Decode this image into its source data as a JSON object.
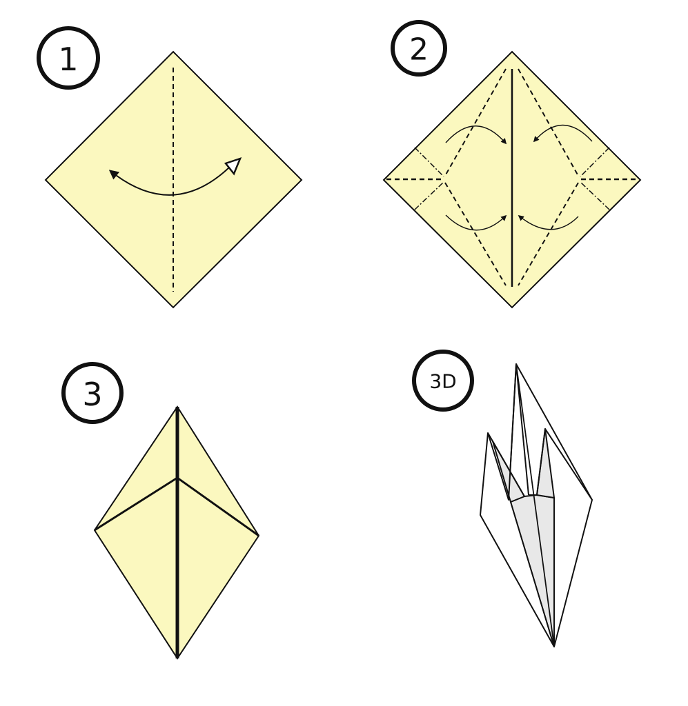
{
  "steps": [
    {
      "label": "1"
    },
    {
      "label": "2"
    },
    {
      "label": "3"
    },
    {
      "label": "3D"
    }
  ],
  "colors": {
    "paper": "#fbf8bf",
    "outline": "#111111",
    "shade": "#e8e8e8",
    "background": "#ffffff"
  },
  "icons": [
    "curved-arrow-icon",
    "valley-fold-line",
    "mountain-fold-line"
  ]
}
